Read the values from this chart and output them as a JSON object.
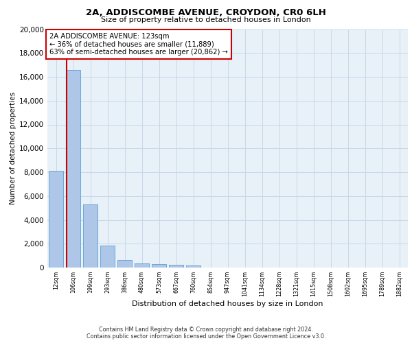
{
  "title": "2A, ADDISCOMBE AVENUE, CROYDON, CR0 6LH",
  "subtitle": "Size of property relative to detached houses in London",
  "xlabel": "Distribution of detached houses by size in London",
  "ylabel": "Number of detached properties",
  "categories": [
    "12sqm",
    "106sqm",
    "199sqm",
    "293sqm",
    "386sqm",
    "480sqm",
    "573sqm",
    "667sqm",
    "760sqm",
    "854sqm",
    "947sqm",
    "1041sqm",
    "1134sqm",
    "1228sqm",
    "1321sqm",
    "1415sqm",
    "1508sqm",
    "1602sqm",
    "1695sqm",
    "1789sqm",
    "1882sqm"
  ],
  "bar_values": [
    8100,
    16600,
    5300,
    1850,
    650,
    340,
    270,
    210,
    175,
    0,
    0,
    0,
    0,
    0,
    0,
    0,
    0,
    0,
    0,
    0,
    0
  ],
  "bar_color": "#aec6e8",
  "bar_edge_color": "#5a9fd4",
  "red_line_x": 0.62,
  "property_label": "2A ADDISCOMBE AVENUE: 123sqm",
  "annotation_line1": "← 36% of detached houses are smaller (11,889)",
  "annotation_line2": "63% of semi-detached houses are larger (20,862) →",
  "annotation_box_color": "#ffffff",
  "annotation_box_edge": "#cc0000",
  "red_line_color": "#cc0000",
  "ylim": [
    0,
    20000
  ],
  "yticks": [
    0,
    2000,
    4000,
    6000,
    8000,
    10000,
    12000,
    14000,
    16000,
    18000,
    20000
  ],
  "grid_color": "#c8d8e8",
  "bg_color": "#e8f0f8",
  "footer1": "Contains HM Land Registry data © Crown copyright and database right 2024.",
  "footer2": "Contains public sector information licensed under the Open Government Licence v3.0."
}
